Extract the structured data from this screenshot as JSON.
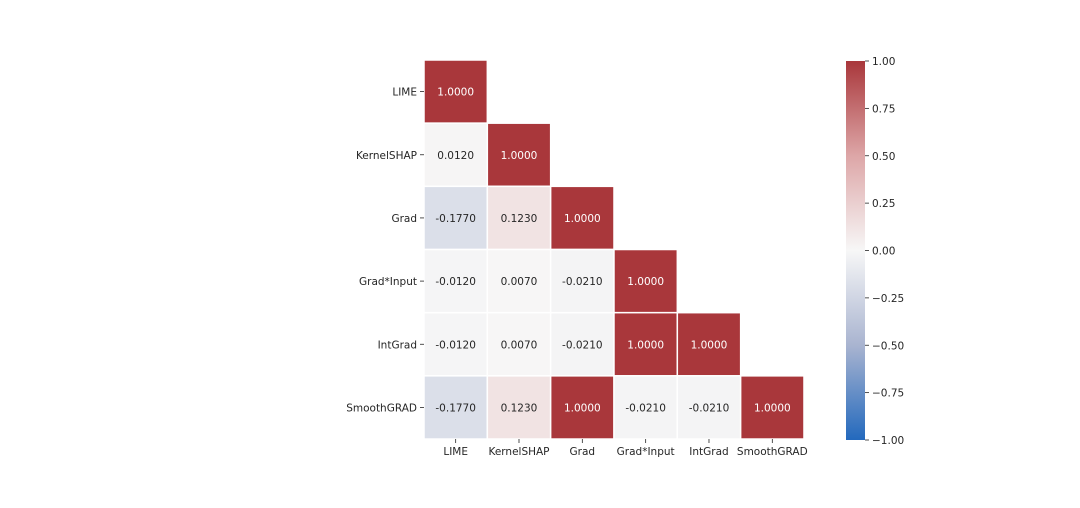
{
  "chart_data": {
    "type": "heatmap",
    "title": "",
    "xlabel": "",
    "ylabel": "",
    "x_labels": [
      "LIME",
      "KernelSHAP",
      "Grad",
      "Grad*Input",
      "IntGrad",
      "SmoothGRAD"
    ],
    "y_labels": [
      "LIME",
      "KernelSHAP",
      "Grad",
      "Grad*Input",
      "IntGrad",
      "SmoothGRAD"
    ],
    "mask": "upper-triangle",
    "values": [
      [
        1.0
      ],
      [
        0.012,
        1.0
      ],
      [
        -0.177,
        0.123,
        1.0
      ],
      [
        -0.012,
        0.007,
        -0.021,
        1.0
      ],
      [
        -0.012,
        0.007,
        -0.021,
        1.0,
        1.0
      ],
      [
        -0.177,
        0.123,
        1.0,
        -0.021,
        -0.021,
        1.0
      ]
    ],
    "value_labels": [
      [
        "1.0000"
      ],
      [
        "0.0120",
        "1.0000"
      ],
      [
        "-0.1770",
        "0.1230",
        "1.0000"
      ],
      [
        "-0.0120",
        "0.0070",
        "-0.0210",
        "1.0000"
      ],
      [
        "-0.0120",
        "0.0070",
        "-0.0210",
        "1.0000",
        "1.0000"
      ],
      [
        "-0.1770",
        "0.1230",
        "1.0000",
        "-0.0210",
        "-0.0210",
        "1.0000"
      ]
    ],
    "colorbar": {
      "colormap": "vlag",
      "vmin": -1.0,
      "vmax": 1.0,
      "ticks": [
        1.0,
        0.75,
        0.5,
        0.25,
        0.0,
        -0.25,
        -0.5,
        -0.75,
        -1.0
      ],
      "tick_labels": [
        "1.00",
        "0.75",
        "0.50",
        "0.25",
        "0.00",
        "−0.25",
        "−0.50",
        "−0.75",
        "−1.00"
      ]
    },
    "colors": {
      "low": "#2369bd",
      "mid": "#f7f7f7",
      "high": "#a9373b",
      "cell_border": "#ffffff",
      "text_dark": "#262626",
      "text_light": "#ffffff"
    }
  }
}
